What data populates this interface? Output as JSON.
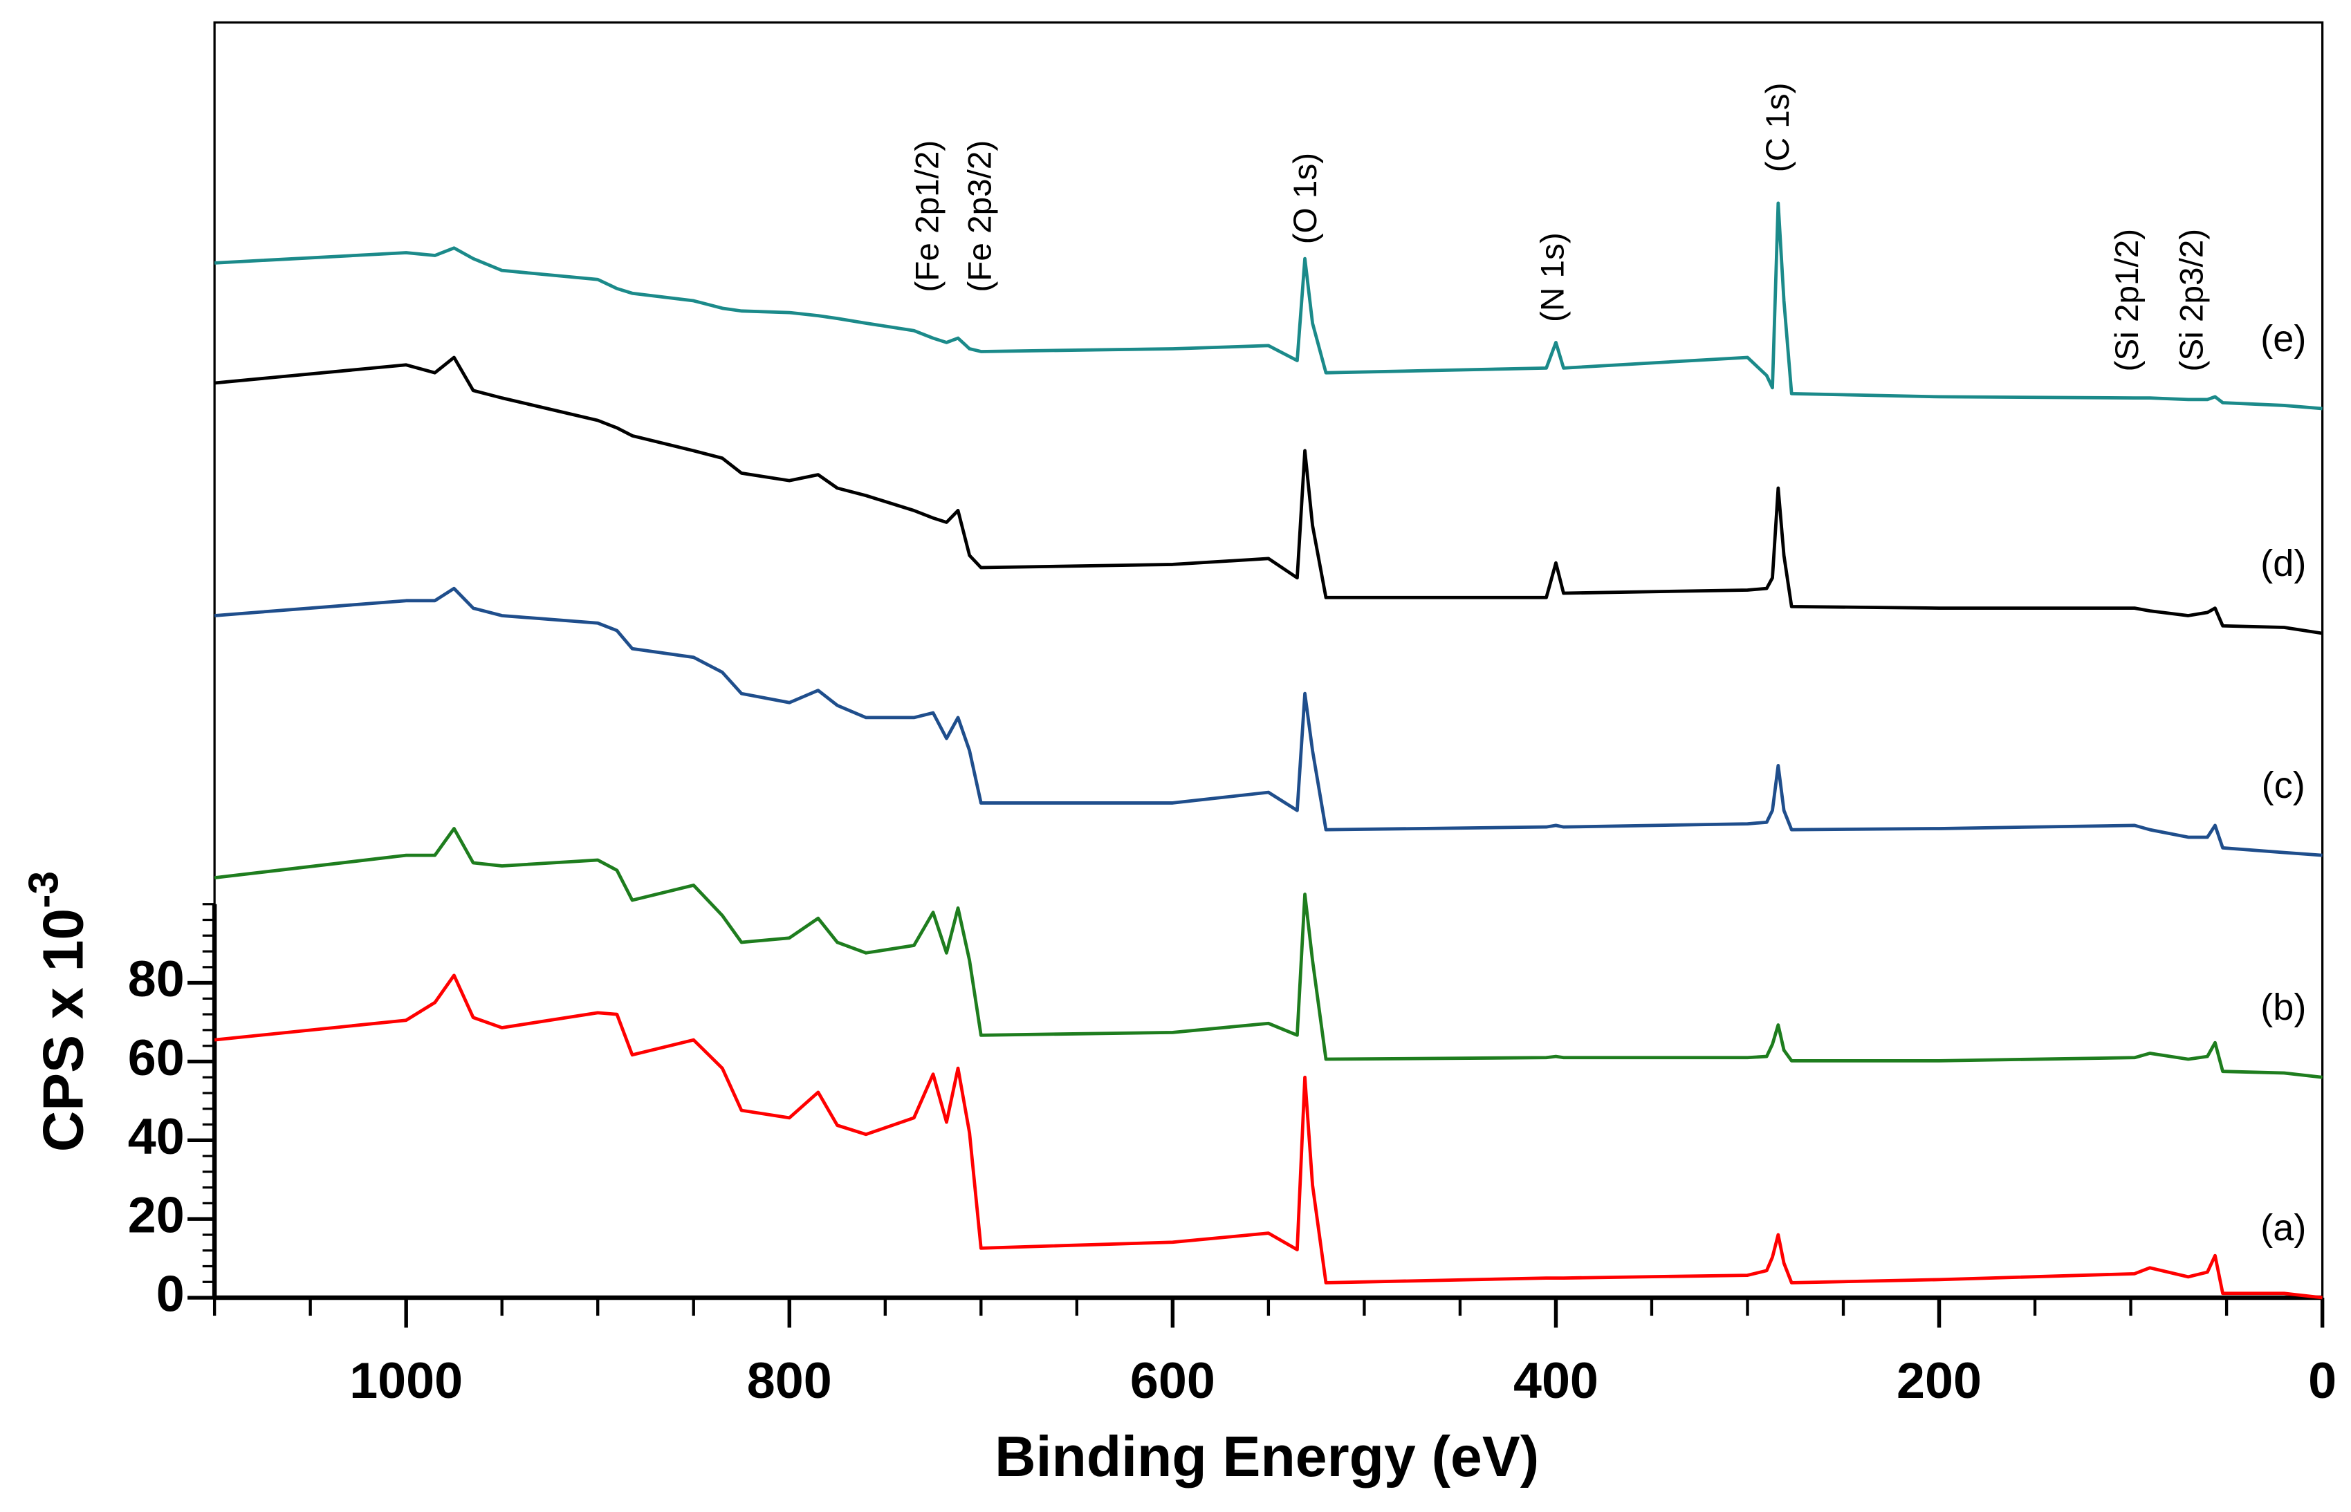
{
  "chart_data": {
    "type": "line",
    "xlabel": "Binding Energy (eV)",
    "ylabel": "CPS x 10",
    "ylabel_exponent": "-3",
    "xlim": [
      1100,
      0
    ],
    "ylim": [
      0,
      324
    ],
    "xticks": [
      1000,
      800,
      600,
      400,
      200,
      0
    ],
    "xminor_step": 50,
    "yticks": [
      0,
      20,
      40,
      60,
      80
    ],
    "yminor": {
      "step": 4,
      "range": [
        0,
        100
      ]
    },
    "x": [
      1100,
      1000,
      985,
      975,
      965,
      950,
      900,
      890,
      882,
      850,
      835,
      825,
      800,
      785,
      775,
      760,
      735,
      725,
      718,
      712,
      706,
      700,
      600,
      550,
      535,
      531,
      527,
      520,
      405,
      400,
      396,
      300,
      290,
      287,
      284,
      281,
      277,
      200,
      98,
      90,
      70,
      60,
      56,
      52,
      20,
      0
    ],
    "series": [
      {
        "name": "(a)",
        "color": "#ff0000",
        "values": [
          65.5,
          70.5,
          75.0,
          81.9,
          71.2,
          68.6,
          72.4,
          72.0,
          61.7,
          65.5,
          58.3,
          47.6,
          45.7,
          52.2,
          43.8,
          41.5,
          45.7,
          56.8,
          44.6,
          58.3,
          41.9,
          12.6,
          14.1,
          16.4,
          12.2,
          56.0,
          28.6,
          3.8,
          5.0,
          5.0,
          5.0,
          5.7,
          6.9,
          10.3,
          16.0,
          8.8,
          3.8,
          4.6,
          6.1,
          7.6,
          5.3,
          6.5,
          10.7,
          1.1,
          1.1,
          0
        ]
      },
      {
        "name": "(b)",
        "color": "#1e7d1e",
        "values": [
          106.7,
          112.4,
          112.4,
          119.2,
          110.5,
          109.7,
          111.2,
          108.6,
          101.0,
          104.8,
          97.1,
          90.3,
          91.4,
          96.4,
          90.3,
          87.6,
          89.5,
          97.9,
          87.6,
          99.0,
          85.7,
          66.7,
          67.4,
          69.7,
          66.7,
          102.5,
          85.7,
          60.6,
          61.0,
          61.3,
          61.0,
          61.0,
          61.3,
          64.4,
          69.3,
          62.9,
          60.2,
          60.2,
          61.0,
          62.1,
          60.6,
          61.3,
          64.8,
          57.5,
          57.1,
          56.0
        ]
      },
      {
        "name": "(c)",
        "color": "#1f4e8c",
        "values": [
          173.3,
          177.1,
          177.1,
          180.2,
          175.2,
          173.3,
          171.4,
          169.5,
          164.9,
          162.7,
          158.9,
          153.5,
          151.2,
          154.3,
          150.5,
          147.4,
          147.4,
          148.6,
          142.1,
          147.4,
          139.0,
          125.7,
          125.7,
          128.4,
          123.8,
          153.5,
          139.0,
          118.9,
          119.6,
          120.0,
          119.6,
          120.4,
          120.8,
          123.8,
          135.2,
          123.8,
          118.9,
          119.2,
          120.0,
          118.9,
          117.0,
          117.0,
          120.0,
          114.3,
          113.1,
          112.4
        ]
      },
      {
        "name": "(d)",
        "color": "#000000",
        "values": [
          232.4,
          237.0,
          235.0,
          238.9,
          230.5,
          228.6,
          222.9,
          221.0,
          219.0,
          215.2,
          213.3,
          209.5,
          207.6,
          209.1,
          205.7,
          203.8,
          200.0,
          198.1,
          197.0,
          200.0,
          188.6,
          185.5,
          186.3,
          187.8,
          182.9,
          215.2,
          196.2,
          177.9,
          177.9,
          186.7,
          179.0,
          179.8,
          180.2,
          182.9,
          205.7,
          188.6,
          175.6,
          175.2,
          175.2,
          174.5,
          173.3,
          174.1,
          175.2,
          170.7,
          170.3,
          168.8
        ]
      },
      {
        "name": "(e)",
        "color": "#1b8a8a",
        "values": [
          262.9,
          265.5,
          264.8,
          266.7,
          264.0,
          261.0,
          258.7,
          256.4,
          255.2,
          253.3,
          251.4,
          250.7,
          250.3,
          249.5,
          248.8,
          247.6,
          245.7,
          243.8,
          242.7,
          243.8,
          241.1,
          240.4,
          241.1,
          241.9,
          238.1,
          264.0,
          247.6,
          235.0,
          236.2,
          242.7,
          236.2,
          238.9,
          234.3,
          231.2,
          278.1,
          253.3,
          229.7,
          228.9,
          228.6,
          228.6,
          228.2,
          228.2,
          228.9,
          227.4,
          226.7,
          225.9
        ]
      }
    ],
    "annotations": [
      {
        "text": "(Fe 2p1/2)",
        "x": 726.8
      },
      {
        "text": "(Fe 2p3/2)",
        "x": 699.4
      },
      {
        "text": "(O 1s)",
        "x": 529.6
      },
      {
        "text": "(N 1s)",
        "x": 400.5
      },
      {
        "text": "(C 1s)",
        "x": 283.1
      },
      {
        "text": "(Si 2p1/2)",
        "x": 100.8
      },
      {
        "text": "(Si 2p3/2)",
        "x": 67.1
      }
    ]
  }
}
